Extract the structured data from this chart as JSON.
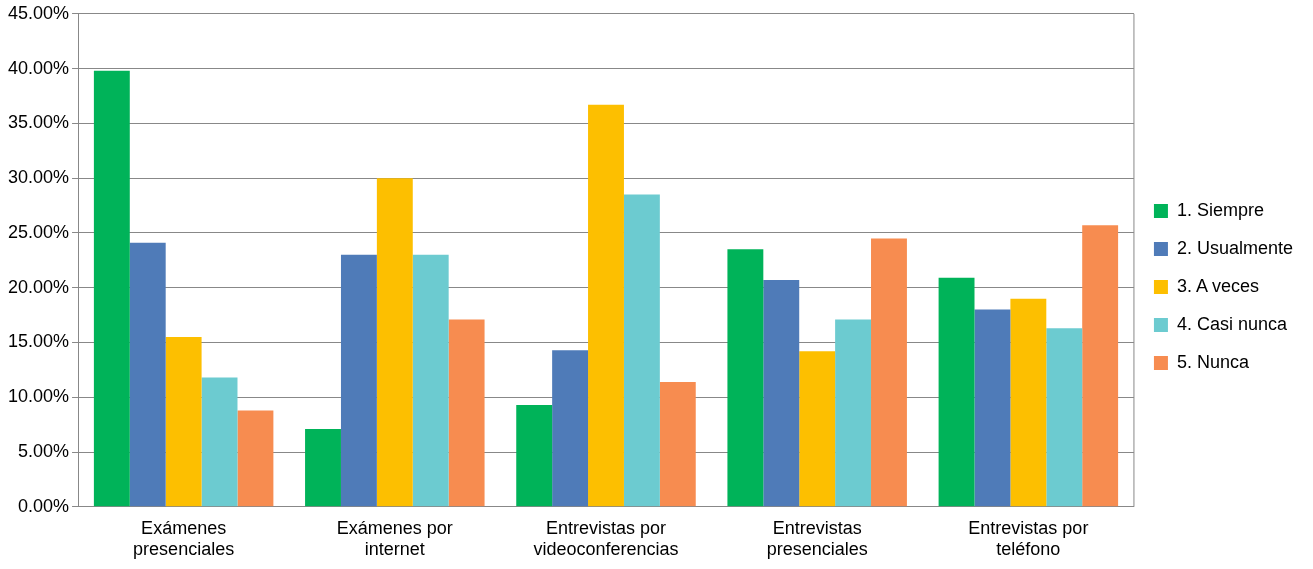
{
  "chart_data": {
    "type": "bar",
    "categories": [
      "Exámenes presenciales",
      "Exámenes por internet",
      "Entrevistas por videoconferencias",
      "Entrevistas presenciales",
      "Entrevistas por teléfono"
    ],
    "series": [
      {
        "name": "1. Siempre",
        "color": "#00b359",
        "values": [
          39.8,
          7.1,
          9.3,
          23.5,
          20.9
        ]
      },
      {
        "name": "2. Usualmente",
        "color": "#4f7bb8",
        "values": [
          24.1,
          23.0,
          14.3,
          20.7,
          18.0
        ]
      },
      {
        "name": "3. A veces",
        "color": "#fdbf00",
        "values": [
          15.5,
          30.0,
          36.7,
          14.2,
          19.0
        ]
      },
      {
        "name": "4. Casi nunca",
        "color": "#6ccbd0",
        "values": [
          11.8,
          23.0,
          28.5,
          17.1,
          16.3
        ]
      },
      {
        "name": "5. Nunca",
        "color": "#f78c50",
        "values": [
          8.8,
          17.1,
          11.4,
          24.5,
          25.7
        ]
      }
    ],
    "ylim": [
      0,
      45
    ],
    "yticks": [
      {
        "value": 0,
        "label": "0.00%"
      },
      {
        "value": 5,
        "label": "5.00%"
      },
      {
        "value": 10,
        "label": "10.00%"
      },
      {
        "value": 15,
        "label": "15.00%"
      },
      {
        "value": 20,
        "label": "20.00%"
      },
      {
        "value": 25,
        "label": "25.00%"
      },
      {
        "value": 30,
        "label": "30.00%"
      },
      {
        "value": 35,
        "label": "35.00%"
      },
      {
        "value": 40,
        "label": "40.00%"
      },
      {
        "value": 45,
        "label": "45.00%"
      }
    ],
    "grid": "y",
    "legend": "right"
  }
}
